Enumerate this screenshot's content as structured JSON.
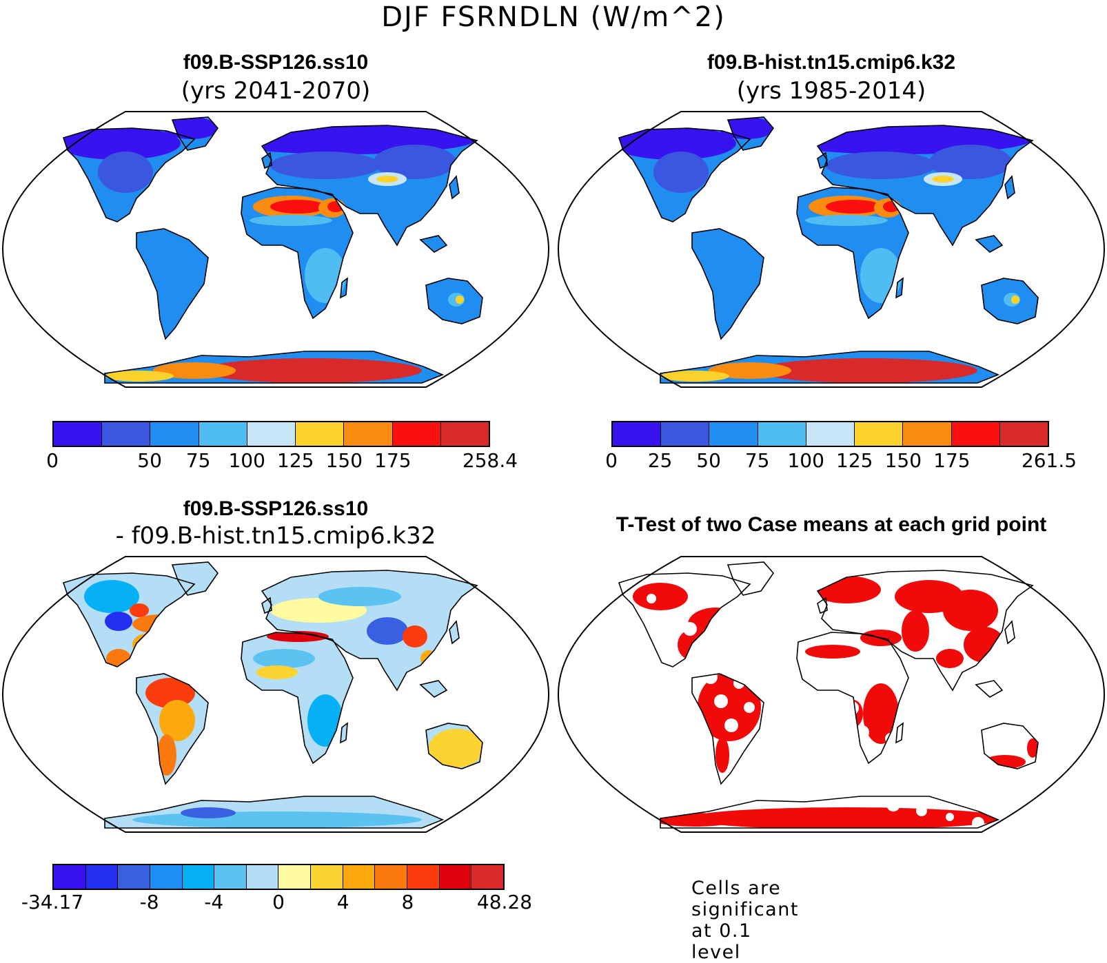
{
  "main_title": "DJF FSRNDLN (W/m^2)",
  "colors": {
    "abs_scale": [
      "#3912f0",
      "#3b57e0",
      "#1f8ef0",
      "#4fbdf2",
      "#c6e6f7",
      "#fbd22c",
      "#fb8c10",
      "#fb0f0f",
      "#d82a2a"
    ],
    "diff_scale": [
      "#3912f0",
      "#2430f0",
      "#3860e0",
      "#1c8ef5",
      "#05b0f5",
      "#5cc2f2",
      "#b4def5",
      "#fefba0",
      "#fcd432",
      "#fba90d",
      "#fb7a10",
      "#fb3c0c",
      "#e0000c",
      "#d82a2a"
    ],
    "ttest_red": "#f00a0a"
  },
  "panels": {
    "top_left": {
      "title": "f09.B-SSP126.ss10",
      "subtitle": "(yrs 2041-2070)",
      "colorbar_labels": [
        {
          "text": "0",
          "pos": 0
        },
        {
          "text": "50",
          "pos": 2
        },
        {
          "text": "75",
          "pos": 3
        },
        {
          "text": "100",
          "pos": 4
        },
        {
          "text": "125",
          "pos": 5
        },
        {
          "text": "150",
          "pos": 6
        },
        {
          "text": "175",
          "pos": 7
        },
        {
          "text": "258.4",
          "pos": 9
        }
      ]
    },
    "top_right": {
      "title": "f09.B-hist.tn15.cmip6.k32",
      "subtitle": "(yrs 1985-2014)",
      "colorbar_labels": [
        {
          "text": "0",
          "pos": 0
        },
        {
          "text": "25",
          "pos": 1
        },
        {
          "text": "50",
          "pos": 2
        },
        {
          "text": "75",
          "pos": 3
        },
        {
          "text": "100",
          "pos": 4
        },
        {
          "text": "125",
          "pos": 5
        },
        {
          "text": "150",
          "pos": 6
        },
        {
          "text": "175",
          "pos": 7
        },
        {
          "text": "261.5",
          "pos": 9
        }
      ]
    },
    "bottom_left": {
      "title": "f09.B-SSP126.ss10",
      "subtitle": "- f09.B-hist.tn15.cmip6.k32",
      "colorbar_labels": [
        {
          "text": "-34.17",
          "pos": 0
        },
        {
          "text": "-8",
          "pos": 3
        },
        {
          "text": "-4",
          "pos": 5
        },
        {
          "text": "0",
          "pos": 7
        },
        {
          "text": "4",
          "pos": 9
        },
        {
          "text": "8",
          "pos": 11
        },
        {
          "text": "48.28",
          "pos": 14
        }
      ]
    },
    "bottom_right": {
      "title": "T-Test of two Case means at each grid point",
      "note": "Cells are significant at 0.1 level"
    }
  }
}
